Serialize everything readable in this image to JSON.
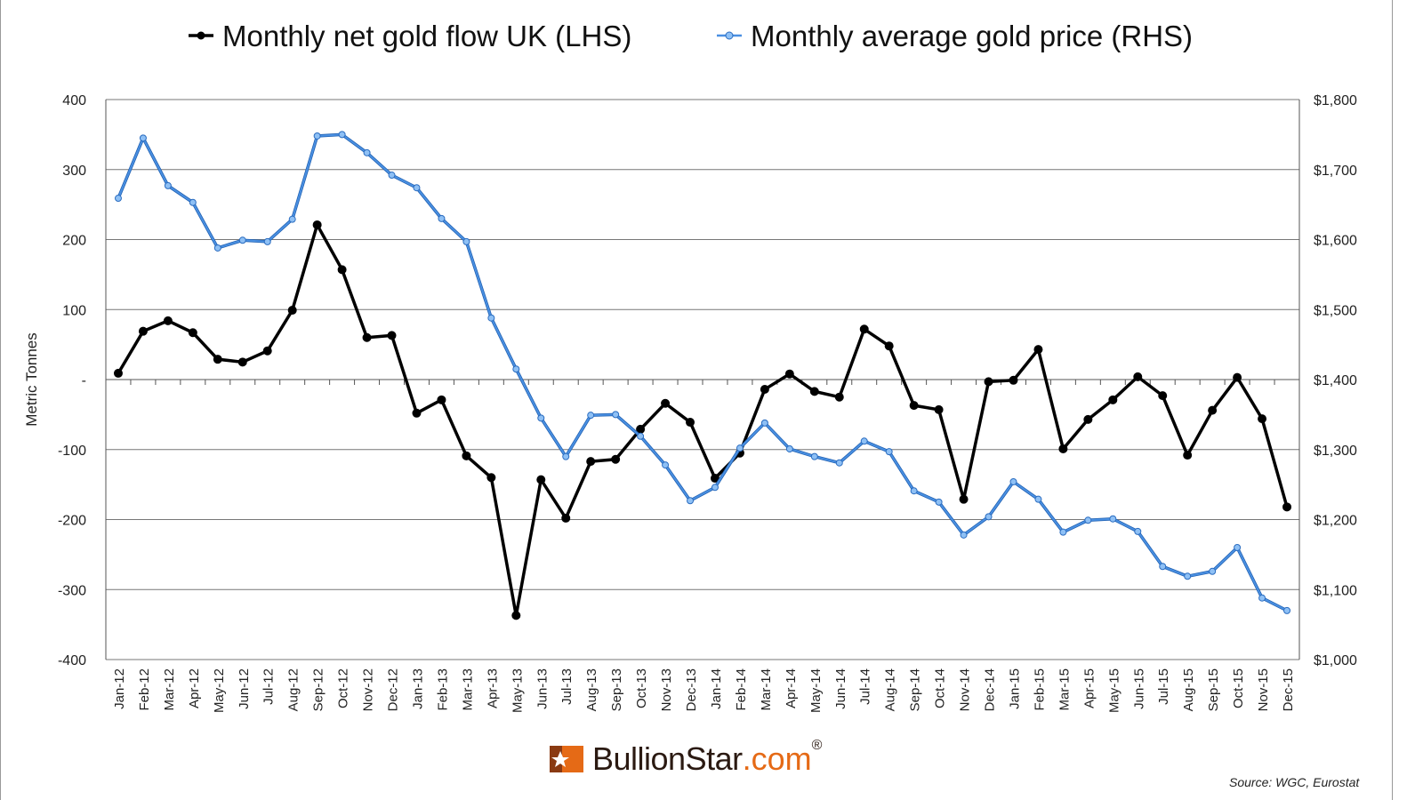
{
  "chart_data": {
    "type": "line",
    "title": "",
    "ylabel": "Metric Tonnes",
    "ylabel_right": "",
    "ylim": [
      -400,
      400
    ],
    "ylim_right": [
      1000,
      1800
    ],
    "yticks_left": [
      "400",
      "300",
      "200",
      "100",
      "-",
      "-100",
      "-200",
      "-300",
      "-400"
    ],
    "yticks_right": [
      "$1,800",
      "$1,700",
      "$1,600",
      "$1,500",
      "$1,400",
      "$1,300",
      "$1,200",
      "$1,100",
      "$1,000"
    ],
    "grid": true,
    "legend": "top",
    "categories": [
      "Jan-12",
      "Feb-12",
      "Mar-12",
      "Apr-12",
      "May-12",
      "Jun-12",
      "Jul-12",
      "Aug-12",
      "Sep-12",
      "Oct-12",
      "Nov-12",
      "Dec-12",
      "Jan-13",
      "Feb-13",
      "Mar-13",
      "Apr-13",
      "May-13",
      "Jun-13",
      "Jul-13",
      "Aug-13",
      "Sep-13",
      "Oct-13",
      "Nov-13",
      "Dec-13",
      "Jan-14",
      "Feb-14",
      "Mar-14",
      "Apr-14",
      "May-14",
      "Jun-14",
      "Jul-14",
      "Aug-14",
      "Sep-14",
      "Oct-14",
      "Nov-14",
      "Dec-14",
      "Jan-15",
      "Feb-15",
      "Mar-15",
      "Apr-15",
      "May-15",
      "Jun-15",
      "Jul-15",
      "Aug-15",
      "Sep-15",
      "Oct-15",
      "Nov-15",
      "Dec-15"
    ],
    "series": [
      {
        "name": "Monthly net gold flow UK (LHS)",
        "axis": "left",
        "color": "#000000",
        "values": [
          9,
          69,
          84,
          67,
          29,
          25,
          41,
          99,
          221,
          157,
          60,
          63,
          -48,
          -29,
          -109,
          -140,
          -337,
          -143,
          -198,
          -117,
          -114,
          -71,
          -34,
          -61,
          -141,
          -105,
          -14,
          8,
          -17,
          -25,
          72,
          48,
          -37,
          -43,
          -171,
          -3,
          -1,
          43,
          -99,
          -57,
          -29,
          4,
          -23,
          -108,
          -44,
          3,
          -56,
          -182
        ]
      },
      {
        "name": "Monthly average gold price (RHS)",
        "axis": "right",
        "color": "#3a7fd5",
        "values": [
          1659,
          1745,
          1677,
          1653,
          1588,
          1599,
          1597,
          1629,
          1748,
          1750,
          1724,
          1692,
          1674,
          1630,
          1597,
          1488,
          1415,
          1345,
          1290,
          1349,
          1350,
          1319,
          1278,
          1227,
          1246,
          1302,
          1338,
          1301,
          1290,
          1281,
          1312,
          1297,
          1241,
          1225,
          1178,
          1204,
          1254,
          1229,
          1182,
          1199,
          1201,
          1183,
          1133,
          1119,
          1126,
          1160,
          1088,
          1070
        ]
      }
    ]
  },
  "logo": {
    "text_main": "BullionStar",
    "text_suffix": ".com",
    "registered": "®"
  },
  "source": "Source: WGC, Eurostat"
}
